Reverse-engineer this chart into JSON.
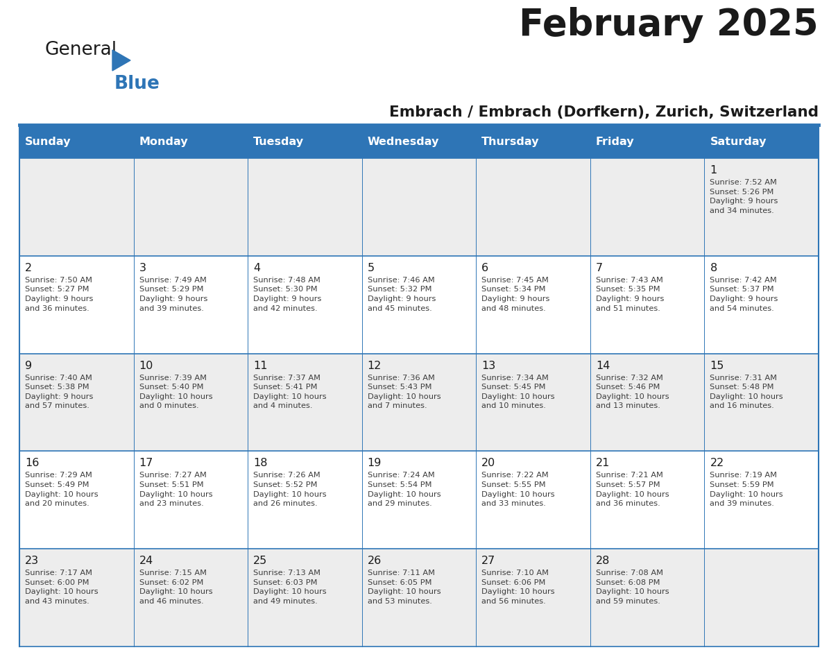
{
  "title": "February 2025",
  "subtitle": "Embrach / Embrach (Dorfkern), Zurich, Switzerland",
  "header_bg": "#2E75B6",
  "header_text": "#FFFFFF",
  "day_names": [
    "Sunday",
    "Monday",
    "Tuesday",
    "Wednesday",
    "Thursday",
    "Friday",
    "Saturday"
  ],
  "cell_colors": [
    "#EDEDED",
    "#FFFFFF"
  ],
  "border_color": "#2E75B6",
  "separator_color": "#2E75B6",
  "text_color": "#3C3C3C",
  "num_color": "#1a1a1a",
  "weeks": [
    [
      {
        "day": null,
        "text": ""
      },
      {
        "day": null,
        "text": ""
      },
      {
        "day": null,
        "text": ""
      },
      {
        "day": null,
        "text": ""
      },
      {
        "day": null,
        "text": ""
      },
      {
        "day": null,
        "text": ""
      },
      {
        "day": 1,
        "text": "Sunrise: 7:52 AM\nSunset: 5:26 PM\nDaylight: 9 hours\nand 34 minutes."
      }
    ],
    [
      {
        "day": 2,
        "text": "Sunrise: 7:50 AM\nSunset: 5:27 PM\nDaylight: 9 hours\nand 36 minutes."
      },
      {
        "day": 3,
        "text": "Sunrise: 7:49 AM\nSunset: 5:29 PM\nDaylight: 9 hours\nand 39 minutes."
      },
      {
        "day": 4,
        "text": "Sunrise: 7:48 AM\nSunset: 5:30 PM\nDaylight: 9 hours\nand 42 minutes."
      },
      {
        "day": 5,
        "text": "Sunrise: 7:46 AM\nSunset: 5:32 PM\nDaylight: 9 hours\nand 45 minutes."
      },
      {
        "day": 6,
        "text": "Sunrise: 7:45 AM\nSunset: 5:34 PM\nDaylight: 9 hours\nand 48 minutes."
      },
      {
        "day": 7,
        "text": "Sunrise: 7:43 AM\nSunset: 5:35 PM\nDaylight: 9 hours\nand 51 minutes."
      },
      {
        "day": 8,
        "text": "Sunrise: 7:42 AM\nSunset: 5:37 PM\nDaylight: 9 hours\nand 54 minutes."
      }
    ],
    [
      {
        "day": 9,
        "text": "Sunrise: 7:40 AM\nSunset: 5:38 PM\nDaylight: 9 hours\nand 57 minutes."
      },
      {
        "day": 10,
        "text": "Sunrise: 7:39 AM\nSunset: 5:40 PM\nDaylight: 10 hours\nand 0 minutes."
      },
      {
        "day": 11,
        "text": "Sunrise: 7:37 AM\nSunset: 5:41 PM\nDaylight: 10 hours\nand 4 minutes."
      },
      {
        "day": 12,
        "text": "Sunrise: 7:36 AM\nSunset: 5:43 PM\nDaylight: 10 hours\nand 7 minutes."
      },
      {
        "day": 13,
        "text": "Sunrise: 7:34 AM\nSunset: 5:45 PM\nDaylight: 10 hours\nand 10 minutes."
      },
      {
        "day": 14,
        "text": "Sunrise: 7:32 AM\nSunset: 5:46 PM\nDaylight: 10 hours\nand 13 minutes."
      },
      {
        "day": 15,
        "text": "Sunrise: 7:31 AM\nSunset: 5:48 PM\nDaylight: 10 hours\nand 16 minutes."
      }
    ],
    [
      {
        "day": 16,
        "text": "Sunrise: 7:29 AM\nSunset: 5:49 PM\nDaylight: 10 hours\nand 20 minutes."
      },
      {
        "day": 17,
        "text": "Sunrise: 7:27 AM\nSunset: 5:51 PM\nDaylight: 10 hours\nand 23 minutes."
      },
      {
        "day": 18,
        "text": "Sunrise: 7:26 AM\nSunset: 5:52 PM\nDaylight: 10 hours\nand 26 minutes."
      },
      {
        "day": 19,
        "text": "Sunrise: 7:24 AM\nSunset: 5:54 PM\nDaylight: 10 hours\nand 29 minutes."
      },
      {
        "day": 20,
        "text": "Sunrise: 7:22 AM\nSunset: 5:55 PM\nDaylight: 10 hours\nand 33 minutes."
      },
      {
        "day": 21,
        "text": "Sunrise: 7:21 AM\nSunset: 5:57 PM\nDaylight: 10 hours\nand 36 minutes."
      },
      {
        "day": 22,
        "text": "Sunrise: 7:19 AM\nSunset: 5:59 PM\nDaylight: 10 hours\nand 39 minutes."
      }
    ],
    [
      {
        "day": 23,
        "text": "Sunrise: 7:17 AM\nSunset: 6:00 PM\nDaylight: 10 hours\nand 43 minutes."
      },
      {
        "day": 24,
        "text": "Sunrise: 7:15 AM\nSunset: 6:02 PM\nDaylight: 10 hours\nand 46 minutes."
      },
      {
        "day": 25,
        "text": "Sunrise: 7:13 AM\nSunset: 6:03 PM\nDaylight: 10 hours\nand 49 minutes."
      },
      {
        "day": 26,
        "text": "Sunrise: 7:11 AM\nSunset: 6:05 PM\nDaylight: 10 hours\nand 53 minutes."
      },
      {
        "day": 27,
        "text": "Sunrise: 7:10 AM\nSunset: 6:06 PM\nDaylight: 10 hours\nand 56 minutes."
      },
      {
        "day": 28,
        "text": "Sunrise: 7:08 AM\nSunset: 6:08 PM\nDaylight: 10 hours\nand 59 minutes."
      },
      {
        "day": null,
        "text": ""
      }
    ]
  ]
}
